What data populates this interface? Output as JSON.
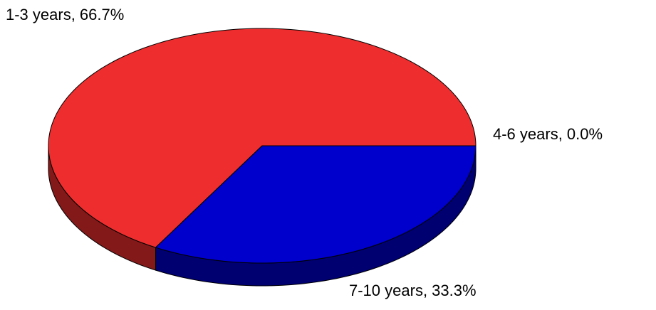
{
  "chart_data": {
    "type": "pie3d",
    "values": [
      66.7,
      0.0,
      33.3
    ],
    "value_labels": [
      "1-3 years, 66.7%",
      "4-6 years, 0.0%",
      "7-10 years, 33.3%"
    ],
    "colors": [
      "#ee2e2e",
      "#00cc00",
      "#0000cc"
    ]
  }
}
